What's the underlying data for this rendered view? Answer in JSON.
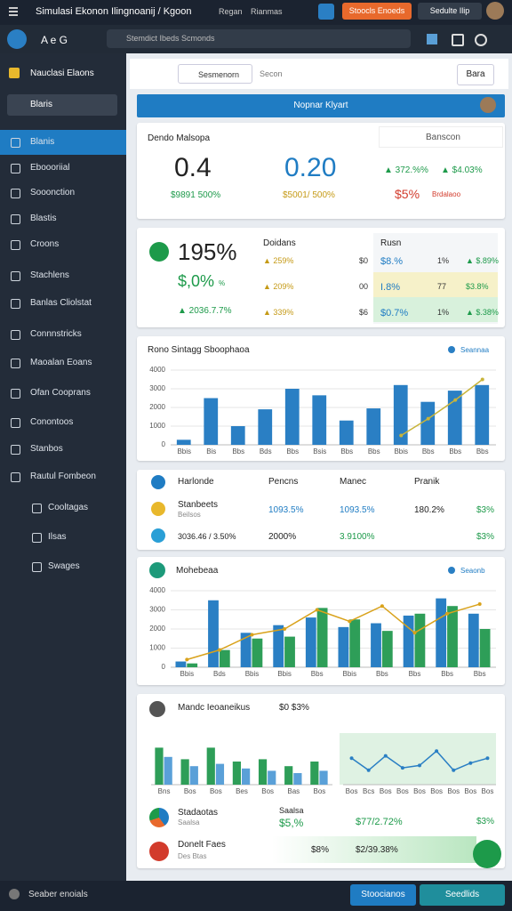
{
  "topbar": {
    "title": "Simulasi Ekonon Ilingnoanij / Kgoon",
    "crumb": "Regan",
    "crumb2": "Rianmas",
    "button": "Stoocls Enoeds",
    "user": "Sedulte Ilip"
  },
  "searchbar": {
    "nav": "A e G",
    "placeholder": "Stemdict Ibeds Scmonds"
  },
  "sidebar": {
    "header": "Nauclasi Elaons",
    "search": "Blaris",
    "items": [
      "Blanis",
      "Eboooriial",
      "Sooonction",
      "Blastis",
      "Croons",
      "Stachlens",
      "Banlas Cliolstat",
      "Connnstricks",
      "Maoalan Eoans",
      "Ofan Cooprans",
      "Conontoos",
      "Stanbos",
      "Rautul Fombeon"
    ],
    "subitems": [
      "Cooltagas",
      "Ilsas",
      "Swages"
    ],
    "footer": "Seaber enoials"
  },
  "tabs": {
    "active": "Sesmenorn",
    "other": "Secon",
    "button": "Bara"
  },
  "banner": "Nopnar Klyart",
  "summary": {
    "title": "Dendo Malsopa",
    "kpi1": "0.4",
    "kpi1_sub": "$9891 500%",
    "kpi2": "0.20",
    "kpi2_sub": "$5001/ 500%",
    "select": "Banscon",
    "change1": "▲ 372.%%",
    "change2": "▲ $4.03%",
    "neg": "$5%",
    "neg_label": "Brdalaoo"
  },
  "detail": {
    "value": "195%",
    "sub": "$,0%",
    "unit": "%",
    "change": "▲ 2036.7.7%",
    "head": [
      "Doidans",
      "Rusn"
    ],
    "rows": [
      [
        "▲ 259%",
        "$0",
        "$8.%",
        "1%",
        "▲ $.89%"
      ],
      [
        "▲ 209%",
        "00",
        "I.8%",
        "77",
        "$3.8%"
      ],
      [
        "▲ 339%",
        "$6",
        "$0.7%",
        "1%",
        "▲ $.38%"
      ]
    ]
  },
  "chart1": {
    "type": "bar",
    "title": "Rono Sintagg Sboophaoa",
    "ylim": [
      0,
      4000
    ],
    "yticks": [
      0,
      1000,
      2000,
      3000,
      4000
    ],
    "grid": true,
    "categories": [
      "Bbis",
      "Bis",
      "Bbs",
      "Bds",
      "Bbs",
      "Bsis",
      "Bbs",
      "Bbs",
      "Bbis",
      "Bbs",
      "Bbs",
      "Bbs"
    ],
    "series": [
      {
        "name": "Seannaa",
        "color": "#2a7fc4",
        "values": [
          270,
          2500,
          1000,
          1900,
          3000,
          2650,
          1300,
          1950,
          3200,
          2300,
          2900,
          3200
        ]
      },
      {
        "type": "line",
        "color": "#c8b43a",
        "values": [
          null,
          null,
          null,
          null,
          null,
          null,
          null,
          null,
          500,
          1400,
          2400,
          3500
        ]
      }
    ]
  },
  "table": {
    "head": [
      "Harlonde",
      "Pencns",
      "Manec",
      "Pranik"
    ],
    "rows": [
      [
        "Stanbeets",
        "Beilsos",
        "1093.5%",
        "1093.5%",
        "180.2%",
        "$3%"
      ],
      [
        "3036.46 / 3.50%",
        "2000%",
        "3.9100%",
        "$3%"
      ]
    ]
  },
  "chart2": {
    "type": "bar",
    "title": "Mohebeaa",
    "ylim": [
      0,
      4000
    ],
    "yticks": [
      0,
      1000,
      2000,
      3000,
      4000
    ],
    "grid": true,
    "categories": [
      "Bbis",
      "Bds",
      "Bbis",
      "Bbis",
      "Bbs",
      "Bbis",
      "Bbs",
      "Bbs",
      "Bbs",
      "Bbs"
    ],
    "series": [
      {
        "name": "Seaonb",
        "color": "#2a7fc4",
        "values": [
          300,
          3500,
          1800,
          2200,
          2600,
          2100,
          2300,
          2700,
          3600,
          2800
        ]
      },
      {
        "color": "#2e9e58",
        "values": [
          200,
          900,
          1500,
          1600,
          3100,
          2500,
          1900,
          2800,
          3200,
          2000
        ]
      },
      {
        "type": "line",
        "color": "#d9a21b",
        "values": [
          400,
          900,
          1700,
          2000,
          3000,
          2400,
          3200,
          1800,
          2800,
          3300
        ]
      }
    ]
  },
  "panel": {
    "title": "Mandc Ieoaneikus",
    "value": "$0 $3%",
    "bars": {
      "type": "bar",
      "ylim": [
        0,
        100
      ],
      "categories": [
        "Bns",
        "Bos",
        "Bos",
        "Bes",
        "Bos",
        "Bas",
        "Bos"
      ],
      "series": [
        {
          "color": "#2e9e58",
          "values": [
            80,
            55,
            80,
            50,
            55,
            40,
            50
          ]
        },
        {
          "color": "#5aa0d8",
          "values": [
            60,
            40,
            45,
            35,
            30,
            25,
            30
          ]
        }
      ]
    },
    "line": {
      "type": "line",
      "ylim": [
        0,
        100
      ],
      "categories": [
        "Bos",
        "Bcs",
        "Bos",
        "Bos",
        "Bos",
        "Bos",
        "Bos",
        "Bos",
        "Bos"
      ],
      "series": [
        {
          "color": "#2a7fc4",
          "values": [
            55,
            30,
            60,
            35,
            40,
            70,
            30,
            45,
            55
          ]
        }
      ]
    },
    "rows": [
      [
        "Stadaotas",
        "Saalsa",
        "$5,%",
        "$77/2.72%",
        "$3%"
      ],
      [
        "Donelt Faes",
        "Des Btas",
        "$8%",
        "$2/39.38%"
      ]
    ]
  },
  "footer": {
    "button1": "Stoocianos",
    "button2": "Seedlids"
  }
}
